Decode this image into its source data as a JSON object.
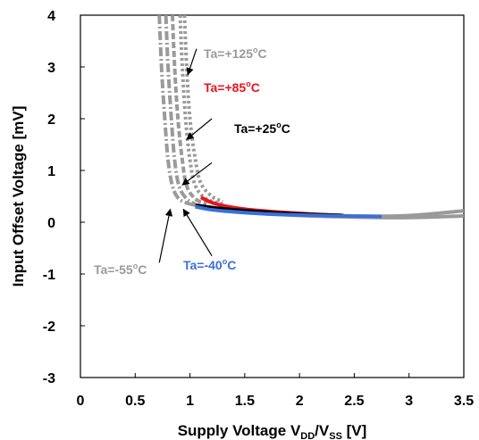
{
  "chart_data": {
    "type": "line",
    "title": "",
    "xlabel": "Supply Voltage V_DD/V_SS [V]",
    "xlabel_parts": {
      "main": "Supply Voltage V",
      "sub1": "DD",
      "mid": "/V",
      "sub2": "SS",
      "tail": " [V]"
    },
    "ylabel": "Input Offset Voltage [mV]",
    "xlim": [
      0,
      3.5
    ],
    "ylim": [
      -3,
      4
    ],
    "x_ticks": [
      "0",
      "0.5",
      "1",
      "1.5",
      "2",
      "2.5",
      "3",
      "3.5"
    ],
    "y_ticks": [
      "4",
      "3",
      "2",
      "1",
      "0",
      "-1",
      "-2",
      "-3"
    ],
    "grid": false,
    "series": [
      {
        "name": "Ta=+125°C",
        "color": "#9a9a9a",
        "style": "dotted",
        "x": [
          0.95,
          0.97,
          1.0,
          1.05,
          1.1,
          1.2,
          1.3
        ],
        "y": [
          4.0,
          3.0,
          2.0,
          1.2,
          0.75,
          0.5,
          0.4
        ]
      },
      {
        "name": "Ta=+125°C",
        "color": "#9a9a9a",
        "style": "dotted",
        "x": [
          0.91,
          0.93,
          0.96,
          1.0,
          1.05,
          1.15,
          1.3
        ],
        "y": [
          4.0,
          3.0,
          2.0,
          1.2,
          0.7,
          0.45,
          0.35
        ]
      },
      {
        "name": "Ta=+85°C",
        "color": "#9a9a9a",
        "style": "dashed",
        "x": [
          0.84,
          0.86,
          0.89,
          0.93,
          0.97,
          1.05,
          1.15
        ],
        "y": [
          4.0,
          3.0,
          2.0,
          1.2,
          0.7,
          0.45,
          0.35
        ]
      },
      {
        "name": "Ta=+25°C",
        "color": "#9a9a9a",
        "style": "dashdot",
        "x": [
          0.72,
          0.74,
          0.77,
          0.8,
          0.84,
          0.9,
          1.0
        ],
        "y": [
          4.0,
          3.0,
          2.0,
          1.2,
          0.7,
          0.45,
          0.35
        ]
      },
      {
        "name": "Ta=-40°C",
        "color": "#9a9a9a",
        "style": "dashdot",
        "x": [
          0.78,
          0.8,
          0.83,
          0.86,
          0.9,
          0.97,
          1.05
        ],
        "y": [
          4.0,
          3.0,
          2.0,
          1.2,
          0.7,
          0.45,
          0.35
        ]
      },
      {
        "name": "Ta=-55°C",
        "color": "#9a9a9a",
        "style": "solid",
        "x": [
          1.0,
          1.2,
          1.5,
          2.0,
          2.5,
          3.0,
          3.5
        ],
        "y": [
          0.35,
          0.28,
          0.22,
          0.16,
          0.12,
          0.13,
          0.22
        ]
      },
      {
        "name": "Ta=-55°C",
        "color": "#9a9a9a",
        "style": "solid",
        "x": [
          1.05,
          1.3,
          1.6,
          2.0,
          2.5,
          3.0,
          3.5
        ],
        "y": [
          0.3,
          0.24,
          0.18,
          0.13,
          0.1,
          0.09,
          0.12
        ]
      },
      {
        "name": "Ta=+85°C",
        "color": "#e8141c",
        "style": "solid",
        "x": [
          1.1,
          1.2,
          1.35,
          1.6,
          2.0,
          2.4
        ],
        "y": [
          0.48,
          0.38,
          0.3,
          0.23,
          0.17,
          0.13
        ]
      },
      {
        "name": "Ta=+25°C",
        "color": "#000000",
        "style": "solid",
        "x": [
          1.05,
          1.15,
          1.3,
          1.6,
          2.0,
          2.4
        ],
        "y": [
          0.33,
          0.3,
          0.26,
          0.21,
          0.16,
          0.13
        ]
      },
      {
        "name": "Ta=-40°C",
        "color": "#3a6fd8",
        "style": "solid",
        "x": [
          1.05,
          1.2,
          1.4,
          1.7,
          2.0,
          2.4,
          2.75
        ],
        "y": [
          0.3,
          0.24,
          0.2,
          0.16,
          0.14,
          0.12,
          0.11
        ]
      }
    ],
    "annotations": [
      {
        "text": "Ta=+125°C",
        "label": "Ta=+125",
        "unit": "C",
        "color": "#9a9a9a",
        "anchor_x": 1.06,
        "anchor_y": 3.35,
        "tip_x": 0.98,
        "tip_y": 2.85
      },
      {
        "text": "Ta=+85°C",
        "label": "Ta=+85",
        "unit": "C",
        "color": "#e8141c",
        "anchor_x": 1.2,
        "anchor_y": 2.0,
        "tip_x": 0.97,
        "tip_y": 1.6
      },
      {
        "text": "Ta=+25°C",
        "label": "Ta=+25",
        "unit": "C",
        "color": "#000000",
        "anchor_x": 1.2,
        "anchor_y": 1.15,
        "tip_x": 0.93,
        "tip_y": 0.72
      },
      {
        "text": "Ta=-40°C",
        "label": "Ta=-40",
        "unit": "C",
        "color": "#3a6fd8",
        "anchor_x": 1.2,
        "anchor_y": -0.65,
        "tip_x": 0.94,
        "tip_y": 0.25
      },
      {
        "text": "Ta=-55°C",
        "label": "Ta=-55",
        "unit": "C",
        "color": "#9a9a9a",
        "anchor_x": 0.72,
        "anchor_y": -0.78,
        "tip_x": 0.82,
        "tip_y": 0.25
      }
    ]
  }
}
